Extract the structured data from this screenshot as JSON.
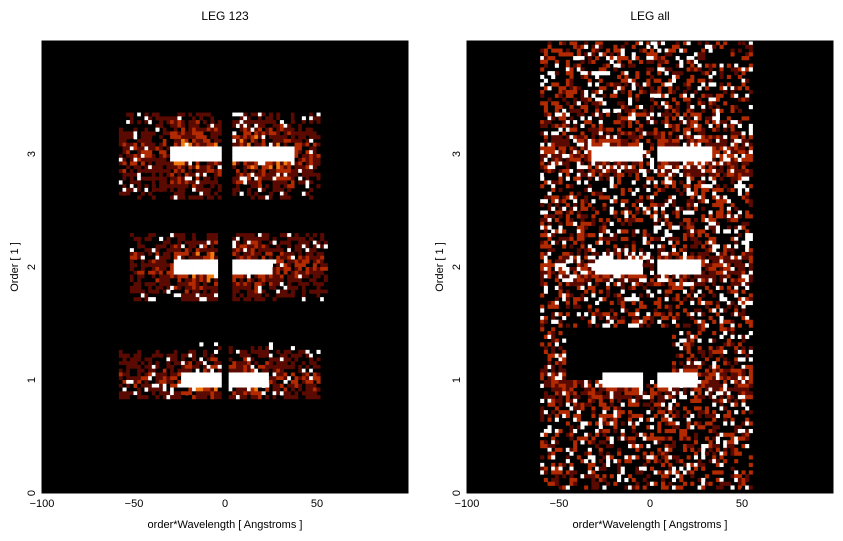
{
  "chart_data": [
    {
      "type": "heatmap",
      "title": "LEG 123",
      "xlabel": "order*Wavelength [ Angstroms ]",
      "ylabel": "Order [ 1 ]",
      "xlim": [
        -100,
        100
      ],
      "ylim": [
        0,
        4
      ],
      "xticks": [
        "−100",
        "−50",
        "0",
        "50"
      ],
      "yticks": [
        "0",
        "1",
        "2",
        "3"
      ],
      "xtick_values": [
        -100,
        -50,
        0,
        50
      ],
      "ytick_values": [
        0,
        1,
        2,
        3
      ],
      "background": "#000000",
      "colormap": [
        "#000000",
        "#5a0a00",
        "#b32a00",
        "#f07a10",
        "#ffd05a",
        "#ffffff"
      ],
      "grid": false,
      "bands": [
        {
          "order": 1,
          "y_range": [
            0.83,
            1.32
          ],
          "x_extent": [
            -58,
            52
          ],
          "core_x": [
            -24,
            24
          ],
          "gap": [
            -2,
            2
          ]
        },
        {
          "order": 2,
          "y_range": [
            1.7,
            2.3
          ],
          "x_extent": [
            -52,
            55
          ],
          "core_x": [
            -28,
            26
          ],
          "gap": [
            -3,
            3
          ]
        },
        {
          "order": 3,
          "y_range": [
            2.6,
            3.35
          ],
          "x_extent": [
            -58,
            52
          ],
          "core_x": [
            -30,
            37
          ],
          "gap": [
            -2,
            3
          ]
        }
      ]
    },
    {
      "type": "heatmap",
      "title": "LEG all",
      "xlabel": "order*Wavelength [ Angstroms ]",
      "ylabel": "Order [ 1 ]",
      "xlim": [
        -100,
        100
      ],
      "ylim": [
        0,
        4
      ],
      "xticks": [
        "−100",
        "−50",
        "0",
        "50"
      ],
      "yticks": [
        "0",
        "1",
        "2",
        "3"
      ],
      "xtick_values": [
        -100,
        -50,
        0,
        50
      ],
      "ytick_values": [
        0,
        1,
        2,
        3
      ],
      "background": "#000000",
      "colormap": [
        "#000000",
        "#5a0a00",
        "#b32a00",
        "#f07a10",
        "#ffd05a",
        "#ffffff"
      ],
      "grid": false,
      "bands": [
        {
          "order": 1,
          "y_range": [
            0.83,
            1.15
          ],
          "x_extent": [
            -58,
            55
          ],
          "core_x": [
            -26,
            26
          ],
          "gap": [
            -3,
            3
          ]
        },
        {
          "order": 2,
          "y_range": [
            1.85,
            2.15
          ],
          "x_extent": [
            -60,
            55
          ],
          "core_x": [
            -30,
            28
          ],
          "gap": [
            -3,
            3
          ]
        },
        {
          "order": 3,
          "y_range": [
            2.8,
            3.15
          ],
          "x_extent": [
            -60,
            55
          ],
          "core_x": [
            -32,
            34
          ],
          "gap": [
            -3,
            3
          ]
        }
      ],
      "noise_region": {
        "x_extent": [
          -60,
          55
        ],
        "y_range": [
          0.05,
          4
        ]
      },
      "blank_block": {
        "x_extent": [
          -45,
          12
        ],
        "y_range": [
          1.0,
          1.48
        ]
      }
    }
  ]
}
